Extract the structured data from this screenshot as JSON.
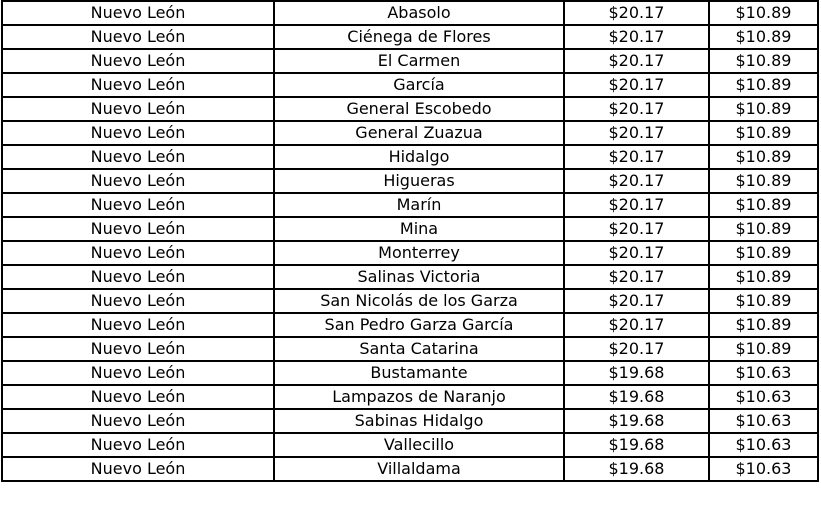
{
  "rows": [
    {
      "state": "Nuevo León",
      "municipality": "Abasolo",
      "price1": "$20.17",
      "price2": "$10.89"
    },
    {
      "state": "Nuevo León",
      "municipality": "Ciénega de Flores",
      "price1": "$20.17",
      "price2": "$10.89"
    },
    {
      "state": "Nuevo León",
      "municipality": "El Carmen",
      "price1": "$20.17",
      "price2": "$10.89"
    },
    {
      "state": "Nuevo León",
      "municipality": "García",
      "price1": "$20.17",
      "price2": "$10.89"
    },
    {
      "state": "Nuevo León",
      "municipality": "General Escobedo",
      "price1": "$20.17",
      "price2": "$10.89"
    },
    {
      "state": "Nuevo León",
      "municipality": "General Zuazua",
      "price1": "$20.17",
      "price2": "$10.89"
    },
    {
      "state": "Nuevo León",
      "municipality": "Hidalgo",
      "price1": "$20.17",
      "price2": "$10.89"
    },
    {
      "state": "Nuevo León",
      "municipality": "Higueras",
      "price1": "$20.17",
      "price2": "$10.89"
    },
    {
      "state": "Nuevo León",
      "municipality": "Marín",
      "price1": "$20.17",
      "price2": "$10.89"
    },
    {
      "state": "Nuevo León",
      "municipality": "Mina",
      "price1": "$20.17",
      "price2": "$10.89"
    },
    {
      "state": "Nuevo León",
      "municipality": "Monterrey",
      "price1": "$20.17",
      "price2": "$10.89"
    },
    {
      "state": "Nuevo León",
      "municipality": "Salinas Victoria",
      "price1": "$20.17",
      "price2": "$10.89"
    },
    {
      "state": "Nuevo León",
      "municipality": "San Nicolás de los Garza",
      "price1": "$20.17",
      "price2": "$10.89"
    },
    {
      "state": "Nuevo León",
      "municipality": "San Pedro Garza García",
      "price1": "$20.17",
      "price2": "$10.89"
    },
    {
      "state": "Nuevo León",
      "municipality": "Santa Catarina",
      "price1": "$20.17",
      "price2": "$10.89"
    },
    {
      "state": "Nuevo León",
      "municipality": "Bustamante",
      "price1": "$19.68",
      "price2": "$10.63"
    },
    {
      "state": "Nuevo León",
      "municipality": "Lampazos de Naranjo",
      "price1": "$19.68",
      "price2": "$10.63"
    },
    {
      "state": "Nuevo León",
      "municipality": "Sabinas Hidalgo",
      "price1": "$19.68",
      "price2": "$10.63"
    },
    {
      "state": "Nuevo León",
      "municipality": "Vallecillo",
      "price1": "$19.68",
      "price2": "$10.63"
    },
    {
      "state": "Nuevo León",
      "municipality": "Villaldama",
      "price1": "$19.68",
      "price2": "$10.63"
    }
  ]
}
